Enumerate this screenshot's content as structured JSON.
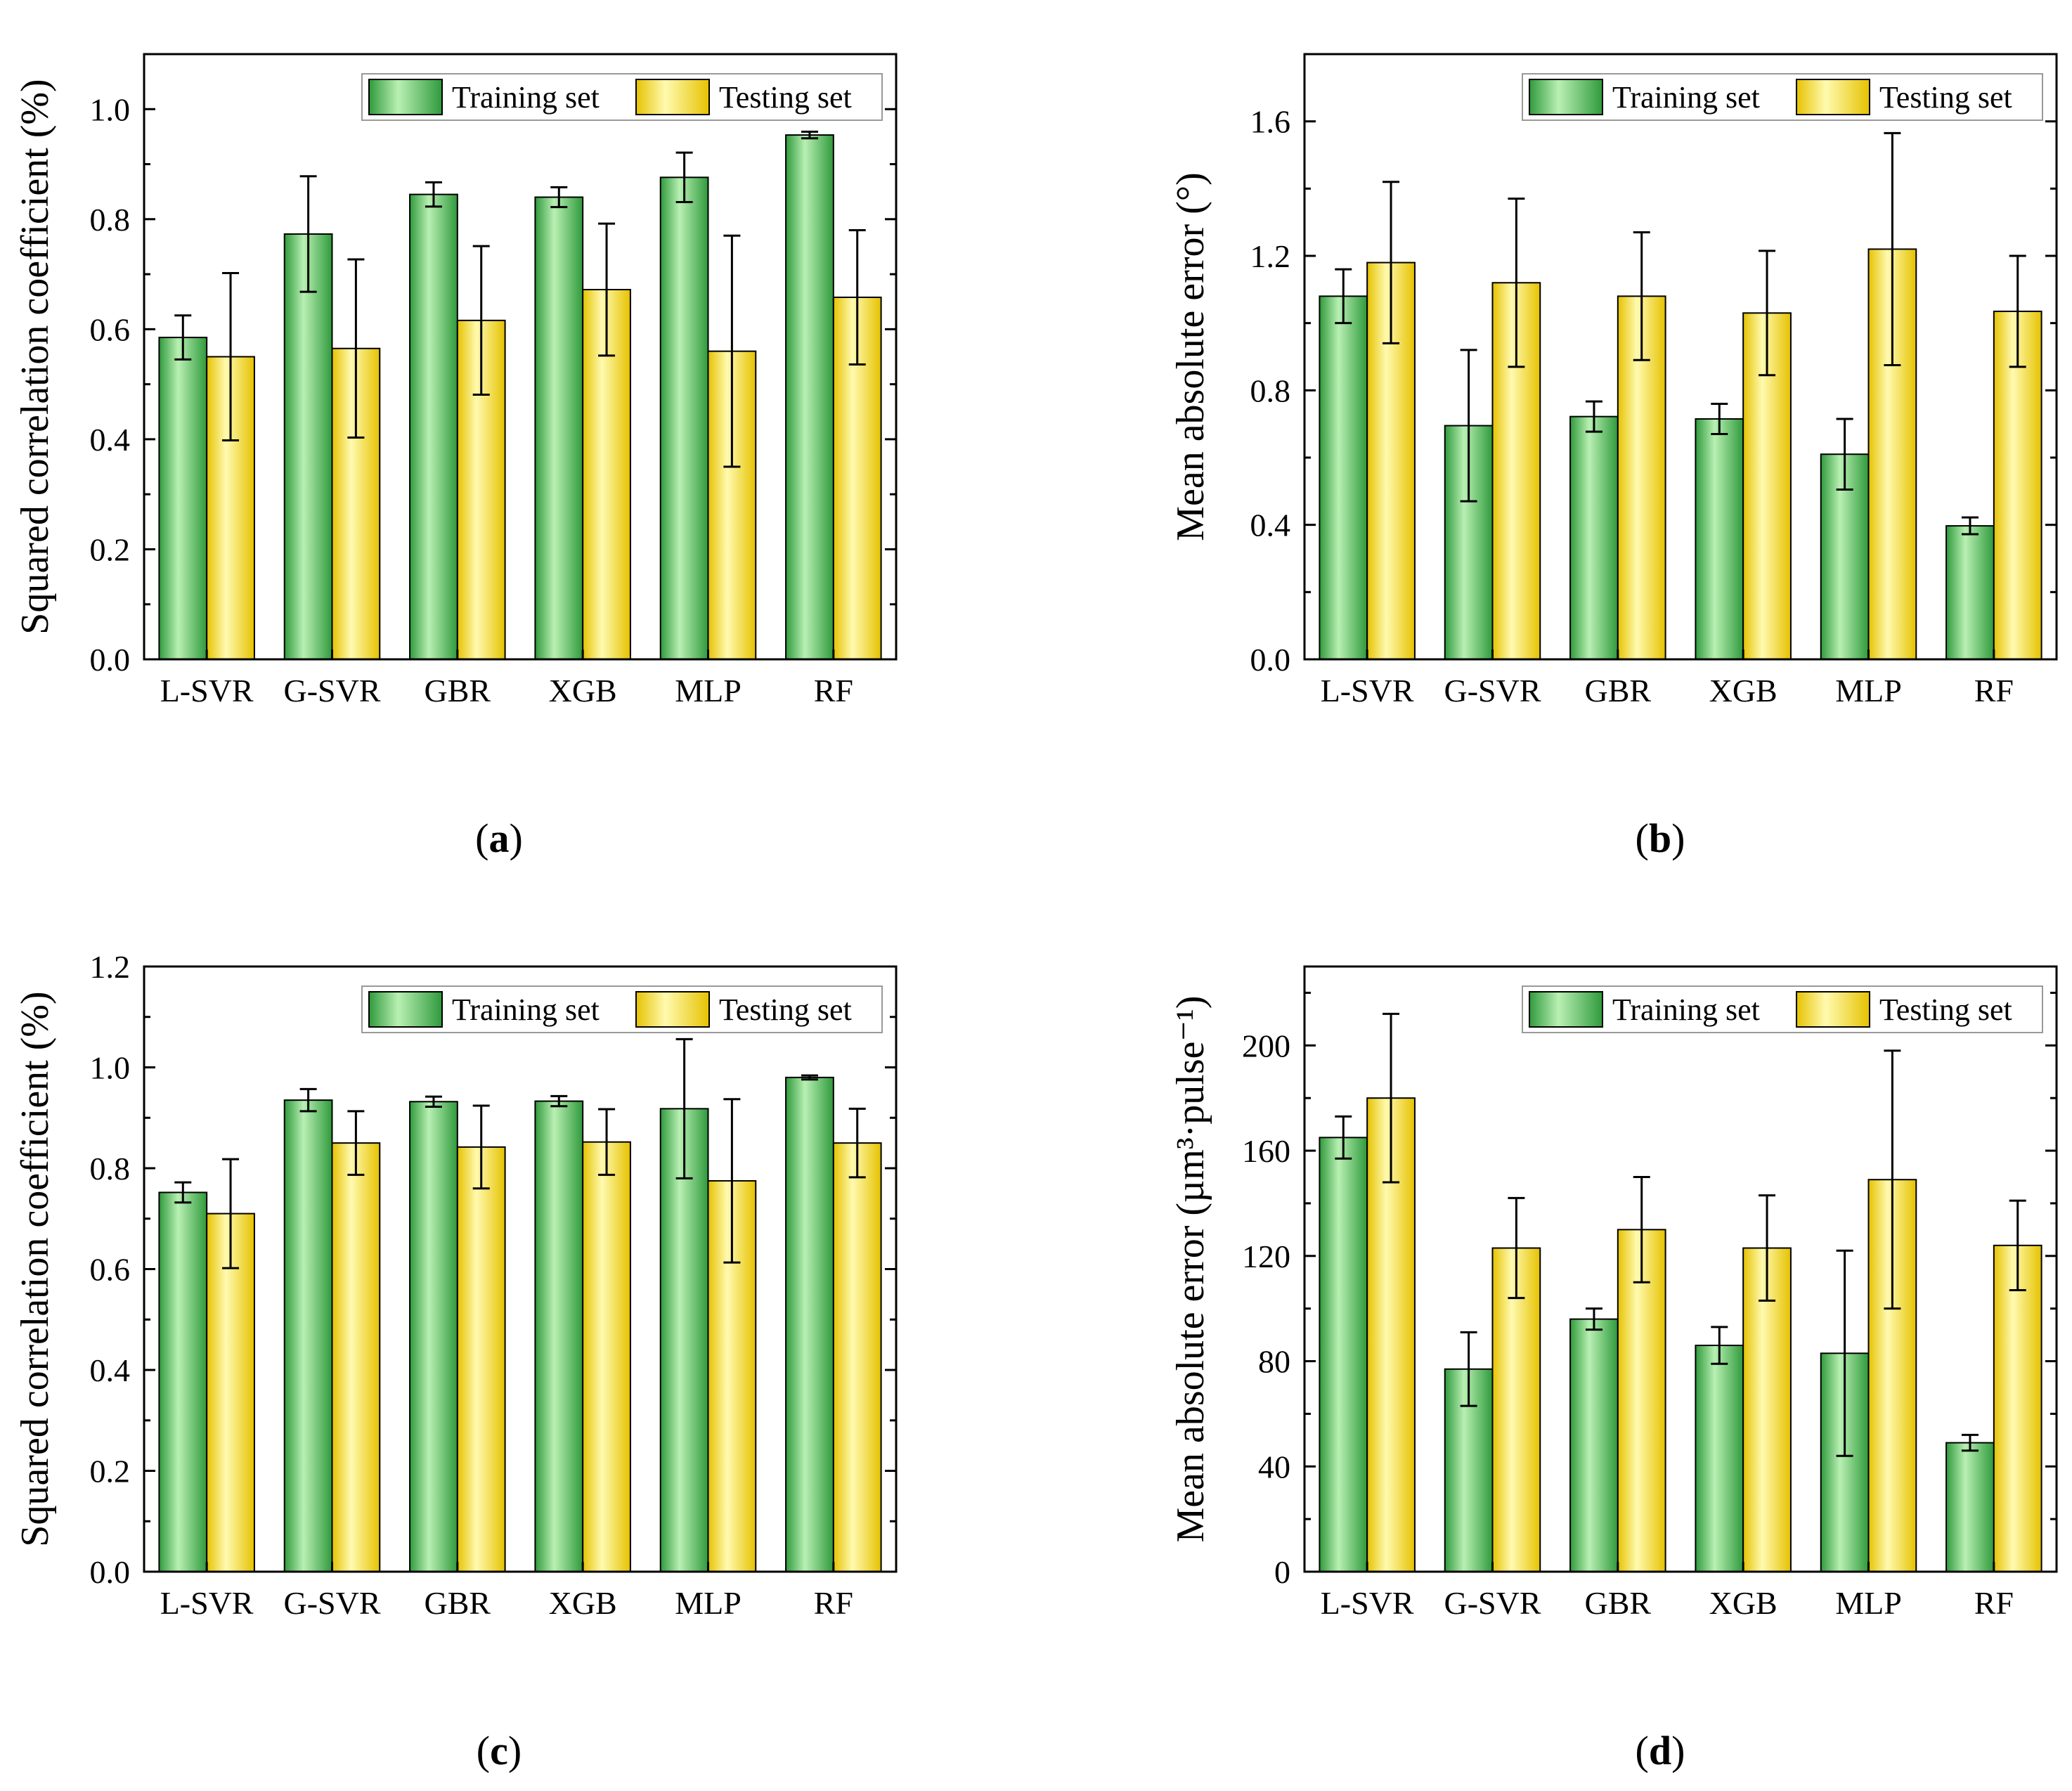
{
  "colors": {
    "train_dark": "#2f9a3c",
    "train_light": "#b9f0b3",
    "test_dark": "#e6c200",
    "test_light": "#fffab0",
    "axis": "#000000"
  },
  "legend": {
    "train": "Training set",
    "test": "Testing set",
    "placement": "top-right"
  },
  "chart_data": [
    {
      "type": "bar",
      "panel": "a",
      "ylabel": "Squared correlation coefficient (%)",
      "ylim": [
        0,
        1.1
      ],
      "yticks": [
        0.0,
        0.2,
        0.4,
        0.6,
        0.8,
        1.0
      ],
      "tick_format": "0.0",
      "categories": [
        "L-SVR",
        "G-SVR",
        "GBR",
        "XGB",
        "MLP",
        "RF"
      ],
      "series": [
        {
          "name": "Training set",
          "values": [
            0.585,
            0.773,
            0.845,
            0.84,
            0.876,
            0.953
          ],
          "errors": [
            0.04,
            0.105,
            0.022,
            0.018,
            0.045,
            0.006
          ]
        },
        {
          "name": "Testing set",
          "values": [
            0.55,
            0.565,
            0.616,
            0.672,
            0.56,
            0.658
          ],
          "errors": [
            0.152,
            0.162,
            0.135,
            0.12,
            0.21,
            0.122
          ]
        }
      ]
    },
    {
      "type": "bar",
      "panel": "b",
      "ylabel": "Mean absolute error (°)",
      "ylim": [
        0,
        1.8
      ],
      "yticks": [
        0.0,
        0.4,
        0.8,
        1.2,
        1.6
      ],
      "tick_format": "0.0",
      "categories": [
        "L-SVR",
        "G-SVR",
        "GBR",
        "XGB",
        "MLP",
        "RF"
      ],
      "series": [
        {
          "name": "Training set",
          "values": [
            1.08,
            0.695,
            0.722,
            0.715,
            0.61,
            0.397
          ],
          "errors": [
            0.08,
            0.225,
            0.045,
            0.045,
            0.105,
            0.025
          ]
        },
        {
          "name": "Testing set",
          "values": [
            1.18,
            1.12,
            1.08,
            1.03,
            1.22,
            1.035
          ],
          "errors": [
            0.24,
            0.25,
            0.19,
            0.185,
            0.345,
            0.165
          ]
        }
      ]
    },
    {
      "type": "bar",
      "panel": "c",
      "ylabel": "Squared correlation coefficient (%)",
      "ylim": [
        0,
        1.2
      ],
      "yticks": [
        0.0,
        0.2,
        0.4,
        0.6,
        0.8,
        1.0,
        1.2
      ],
      "tick_format": "0.0",
      "categories": [
        "L-SVR",
        "G-SVR",
        "GBR",
        "XGB",
        "MLP",
        "RF"
      ],
      "series": [
        {
          "name": "Training set",
          "values": [
            0.752,
            0.935,
            0.932,
            0.933,
            0.918,
            0.98
          ],
          "errors": [
            0.02,
            0.022,
            0.01,
            0.01,
            0.138,
            0.004
          ]
        },
        {
          "name": "Testing set",
          "values": [
            0.71,
            0.85,
            0.842,
            0.852,
            0.775,
            0.85
          ],
          "errors": [
            0.108,
            0.063,
            0.082,
            0.065,
            0.162,
            0.068
          ]
        }
      ]
    },
    {
      "type": "bar",
      "panel": "d",
      "ylabel": "Mean absolute error (µm³·pulse⁻¹)",
      "ylim": [
        0,
        230
      ],
      "yticks": [
        0,
        40,
        80,
        120,
        160,
        200
      ],
      "tick_format": "0",
      "categories": [
        "L-SVR",
        "G-SVR",
        "GBR",
        "XGB",
        "MLP",
        "RF"
      ],
      "series": [
        {
          "name": "Training set",
          "values": [
            165,
            77,
            96,
            86,
            83,
            49
          ],
          "errors": [
            8,
            14,
            4,
            7,
            39,
            3
          ]
        },
        {
          "name": "Testing set",
          "values": [
            180,
            123,
            130,
            123,
            149,
            124
          ],
          "errors": [
            32,
            19,
            20,
            20,
            49,
            17
          ]
        }
      ]
    }
  ],
  "captions": [
    {
      "open": "(",
      "letter": "a",
      "close": ")"
    },
    {
      "open": "(",
      "letter": "b",
      "close": ")"
    },
    {
      "open": "(",
      "letter": "c",
      "close": ")"
    },
    {
      "open": "(",
      "letter": "d",
      "close": ")"
    }
  ]
}
